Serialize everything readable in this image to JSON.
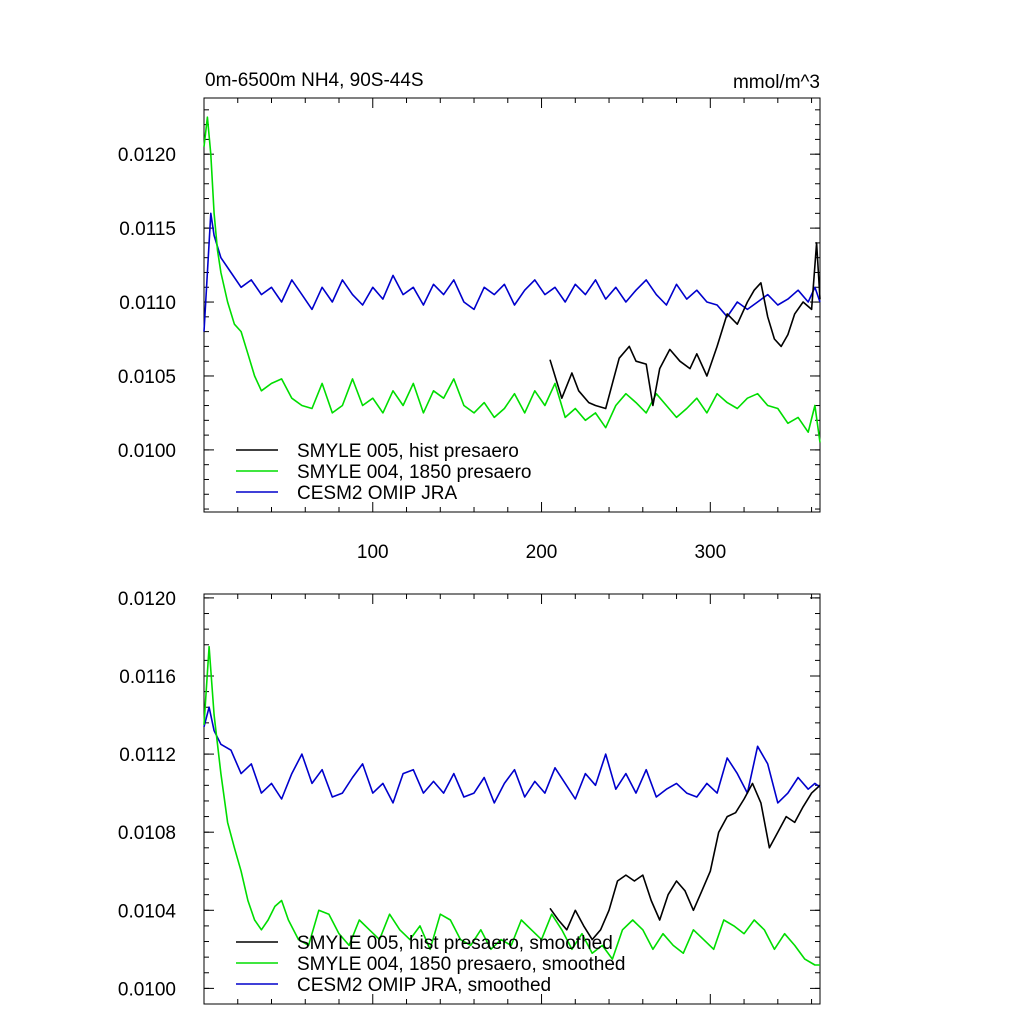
{
  "chart_data": [
    {
      "type": "line",
      "title": "0m-6500m NH4, 90S-44S",
      "units": "mmol/m^3",
      "xlim": [
        0,
        365
      ],
      "ylim": [
        0.00958,
        0.01238
      ],
      "x_ticks": [
        100,
        200,
        300
      ],
      "y_ticks": [
        "0.0100",
        "0.0105",
        "0.0110",
        "0.0115",
        "0.0120"
      ],
      "legend_position": "bottom-left",
      "series": [
        {
          "name": "SMYLE 005, hist presaero",
          "color": "#000000",
          "start_x": 205,
          "x": [
            205,
            212,
            218,
            222,
            228,
            232,
            238,
            242,
            246,
            252,
            256,
            262,
            266,
            270,
            276,
            282,
            288,
            292,
            298,
            304,
            310,
            316,
            322,
            326,
            330,
            334,
            338,
            342,
            346,
            350,
            355,
            360,
            363,
            365
          ],
          "y": [
            0.01061,
            0.01035,
            0.01052,
            0.0104,
            0.01032,
            0.0103,
            0.01028,
            0.01045,
            0.01062,
            0.0107,
            0.0106,
            0.01058,
            0.0103,
            0.01055,
            0.01068,
            0.0106,
            0.01055,
            0.01065,
            0.0105,
            0.0107,
            0.01092,
            0.01085,
            0.011,
            0.01108,
            0.01113,
            0.0109,
            0.01075,
            0.0107,
            0.01078,
            0.01092,
            0.011,
            0.01095,
            0.0114,
            0.01102
          ]
        },
        {
          "name": "SMYLE 004, 1850 presaero",
          "color": "#00dd00",
          "x": [
            0,
            2,
            4,
            6,
            8,
            10,
            14,
            18,
            22,
            26,
            30,
            34,
            40,
            46,
            52,
            58,
            64,
            70,
            76,
            82,
            88,
            94,
            100,
            106,
            112,
            118,
            124,
            130,
            136,
            142,
            148,
            154,
            160,
            166,
            172,
            178,
            184,
            190,
            196,
            202,
            208,
            214,
            220,
            226,
            232,
            238,
            244,
            250,
            256,
            262,
            268,
            274,
            280,
            286,
            292,
            298,
            304,
            310,
            316,
            322,
            328,
            334,
            340,
            346,
            352,
            358,
            362,
            365
          ],
          "y": [
            0.01205,
            0.01225,
            0.012,
            0.0116,
            0.01135,
            0.0112,
            0.011,
            0.01085,
            0.0108,
            0.01065,
            0.0105,
            0.0104,
            0.01045,
            0.01048,
            0.01035,
            0.0103,
            0.01028,
            0.01045,
            0.01025,
            0.0103,
            0.01048,
            0.0103,
            0.01035,
            0.01025,
            0.0104,
            0.0103,
            0.01045,
            0.01025,
            0.0104,
            0.01035,
            0.01048,
            0.0103,
            0.01025,
            0.01032,
            0.01022,
            0.01028,
            0.01038,
            0.01025,
            0.0104,
            0.0103,
            0.01045,
            0.01022,
            0.01028,
            0.0102,
            0.01025,
            0.01015,
            0.0103,
            0.01038,
            0.01032,
            0.01025,
            0.01038,
            0.0103,
            0.01022,
            0.01028,
            0.01035,
            0.01025,
            0.01038,
            0.01032,
            0.01028,
            0.01035,
            0.01038,
            0.0103,
            0.01028,
            0.01018,
            0.01022,
            0.01012,
            0.0103,
            0.01005
          ]
        },
        {
          "name": "CESM2 OMIP JRA",
          "color": "#0000cc",
          "x": [
            0,
            2,
            4,
            6,
            10,
            16,
            22,
            28,
            34,
            40,
            46,
            52,
            58,
            64,
            70,
            76,
            82,
            88,
            94,
            100,
            106,
            112,
            118,
            124,
            130,
            136,
            142,
            148,
            154,
            160,
            166,
            172,
            178,
            184,
            190,
            196,
            202,
            208,
            214,
            220,
            226,
            232,
            238,
            244,
            250,
            256,
            262,
            268,
            274,
            280,
            286,
            292,
            298,
            304,
            310,
            316,
            322,
            328,
            334,
            340,
            346,
            352,
            358,
            362,
            365
          ],
          "y": [
            0.0108,
            0.0112,
            0.0116,
            0.01145,
            0.0113,
            0.0112,
            0.0111,
            0.01115,
            0.01105,
            0.0111,
            0.011,
            0.01115,
            0.01105,
            0.01095,
            0.0111,
            0.011,
            0.01115,
            0.01105,
            0.01098,
            0.0111,
            0.01102,
            0.01118,
            0.01105,
            0.0111,
            0.01098,
            0.01112,
            0.01105,
            0.01115,
            0.011,
            0.01095,
            0.0111,
            0.01105,
            0.01112,
            0.01098,
            0.01108,
            0.01115,
            0.01105,
            0.0111,
            0.011,
            0.01112,
            0.01105,
            0.01115,
            0.01102,
            0.0111,
            0.011,
            0.01108,
            0.01115,
            0.01105,
            0.01098,
            0.01112,
            0.01102,
            0.01108,
            0.011,
            0.01098,
            0.0109,
            0.011,
            0.01095,
            0.011,
            0.01105,
            0.01098,
            0.01102,
            0.01108,
            0.011,
            0.0111,
            0.011
          ]
        }
      ]
    },
    {
      "type": "line",
      "xlim": [
        0,
        365
      ],
      "ylim": [
        0.00992,
        0.01202
      ],
      "x_ticks": [
        100,
        200,
        300
      ],
      "y_ticks": [
        "0.0100",
        "0.0104",
        "0.0108",
        "0.0112",
        "0.0116",
        "0.0120"
      ],
      "legend_position": "bottom-left",
      "series": [
        {
          "name": "SMYLE 005, hist presaero, smoothed",
          "color": "#000000",
          "x": [
            205,
            210,
            215,
            220,
            225,
            230,
            235,
            240,
            245,
            250,
            255,
            260,
            265,
            270,
            275,
            280,
            285,
            290,
            295,
            300,
            305,
            310,
            315,
            320,
            325,
            330,
            335,
            340,
            345,
            350,
            355,
            360,
            365
          ],
          "y": [
            0.01041,
            0.01035,
            0.0103,
            0.0104,
            0.01032,
            0.01025,
            0.0103,
            0.0104,
            0.01055,
            0.01058,
            0.01055,
            0.01058,
            0.01045,
            0.01035,
            0.01048,
            0.01055,
            0.0105,
            0.0104,
            0.0105,
            0.0106,
            0.0108,
            0.01088,
            0.0109,
            0.01097,
            0.01105,
            0.01095,
            0.01072,
            0.0108,
            0.01088,
            0.01085,
            0.01093,
            0.011,
            0.01104
          ]
        },
        {
          "name": "SMYLE 004, 1850 presaero, smoothed",
          "color": "#00dd00",
          "x": [
            0,
            3,
            6,
            10,
            14,
            18,
            22,
            26,
            30,
            34,
            38,
            42,
            46,
            50,
            56,
            62,
            68,
            74,
            80,
            86,
            92,
            98,
            104,
            110,
            116,
            122,
            128,
            134,
            140,
            146,
            152,
            158,
            164,
            170,
            176,
            182,
            188,
            194,
            200,
            206,
            212,
            218,
            224,
            230,
            236,
            242,
            248,
            254,
            260,
            266,
            272,
            278,
            284,
            290,
            296,
            302,
            308,
            314,
            320,
            326,
            332,
            338,
            344,
            350,
            356,
            362,
            365
          ],
          "y": [
            0.01135,
            0.01175,
            0.0114,
            0.0111,
            0.01085,
            0.01072,
            0.0106,
            0.01045,
            0.01035,
            0.0103,
            0.01035,
            0.01042,
            0.01045,
            0.01035,
            0.01025,
            0.01022,
            0.0104,
            0.01038,
            0.01028,
            0.01022,
            0.01035,
            0.0103,
            0.01025,
            0.01038,
            0.0103,
            0.01025,
            0.01032,
            0.0102,
            0.01038,
            0.01035,
            0.01025,
            0.01022,
            0.0103,
            0.0102,
            0.01025,
            0.01022,
            0.01035,
            0.0103,
            0.01025,
            0.01038,
            0.0103,
            0.0102,
            0.01028,
            0.01018,
            0.01022,
            0.01015,
            0.0103,
            0.01035,
            0.0103,
            0.0102,
            0.01028,
            0.01022,
            0.01018,
            0.0103,
            0.01025,
            0.0102,
            0.01035,
            0.01032,
            0.01028,
            0.01035,
            0.0103,
            0.0102,
            0.01028,
            0.01022,
            0.01015,
            0.01012,
            0.01012
          ]
        },
        {
          "name": "CESM2 OMIP JRA, smoothed",
          "color": "#0000cc",
          "x": [
            0,
            3,
            6,
            10,
            16,
            22,
            28,
            34,
            40,
            46,
            52,
            58,
            64,
            70,
            76,
            82,
            88,
            94,
            100,
            106,
            112,
            118,
            124,
            130,
            136,
            142,
            148,
            154,
            160,
            166,
            172,
            178,
            184,
            190,
            196,
            202,
            208,
            214,
            220,
            226,
            232,
            238,
            244,
            250,
            256,
            262,
            268,
            274,
            280,
            286,
            292,
            298,
            304,
            310,
            316,
            322,
            328,
            334,
            340,
            346,
            352,
            358,
            362,
            365
          ],
          "y": [
            0.01134,
            0.01144,
            0.01132,
            0.01125,
            0.01122,
            0.0111,
            0.01115,
            0.011,
            0.01105,
            0.01097,
            0.0111,
            0.0112,
            0.01105,
            0.01112,
            0.01098,
            0.011,
            0.01108,
            0.01115,
            0.011,
            0.01105,
            0.01095,
            0.0111,
            0.01112,
            0.011,
            0.01106,
            0.011,
            0.0111,
            0.01098,
            0.011,
            0.01108,
            0.01095,
            0.01105,
            0.01112,
            0.01098,
            0.01106,
            0.011,
            0.01113,
            0.01105,
            0.01097,
            0.0111,
            0.01104,
            0.0112,
            0.01102,
            0.0111,
            0.011,
            0.01112,
            0.01098,
            0.01102,
            0.01105,
            0.011,
            0.01098,
            0.01105,
            0.011,
            0.01118,
            0.0111,
            0.011,
            0.01124,
            0.01115,
            0.01095,
            0.011,
            0.01108,
            0.01102,
            0.01105,
            0.01103
          ]
        }
      ]
    }
  ]
}
